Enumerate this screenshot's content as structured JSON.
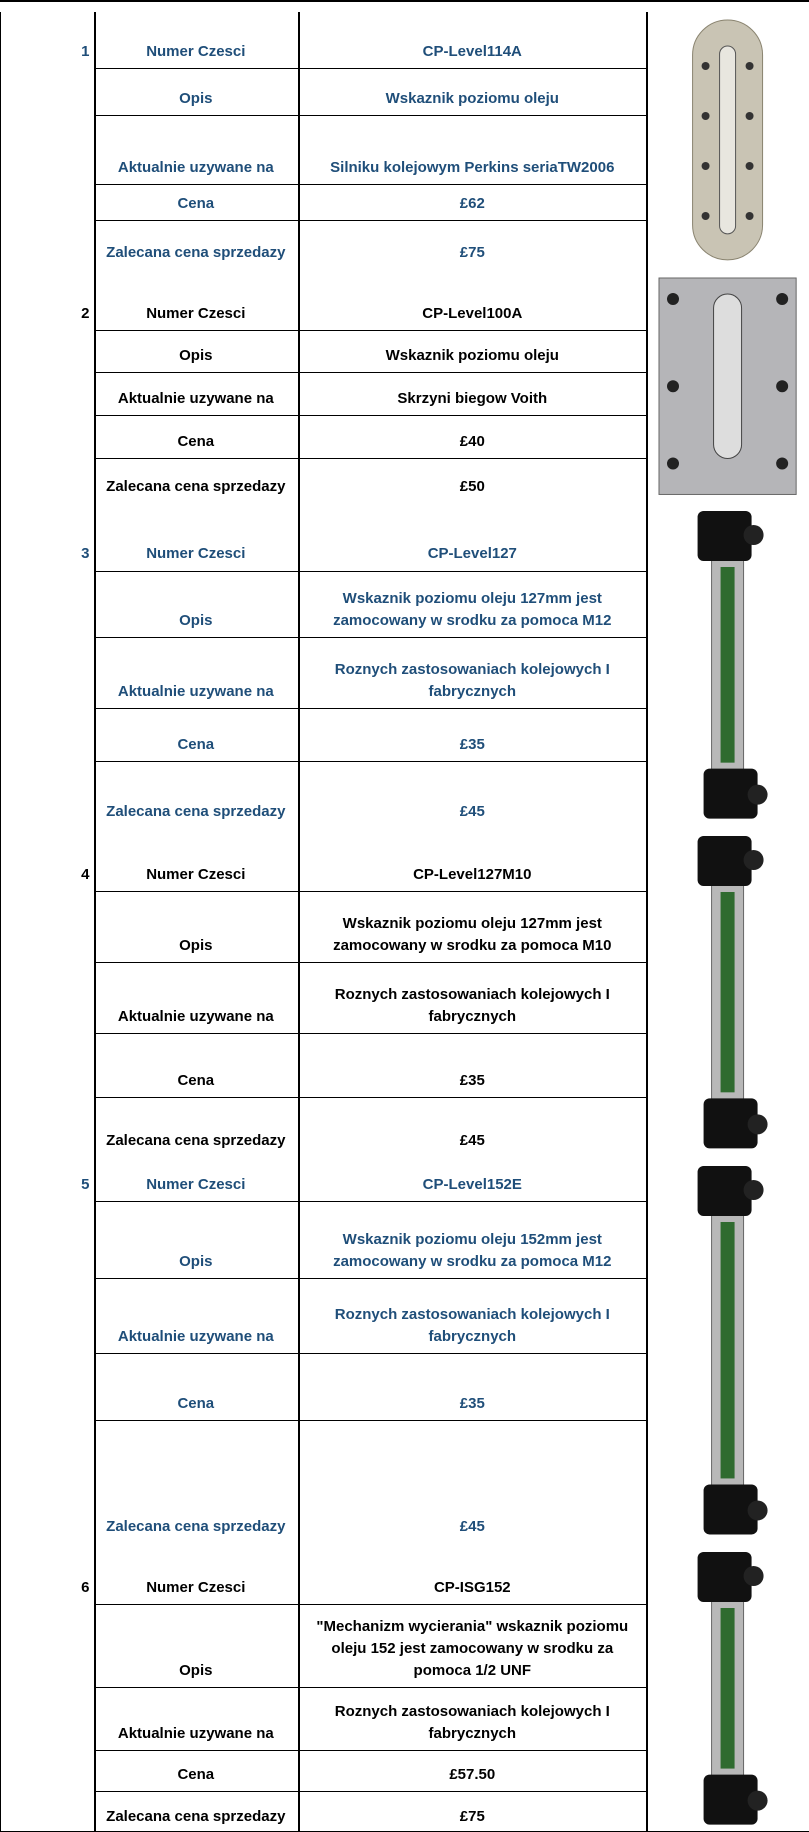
{
  "products": [
    {
      "number": "1",
      "rows": [
        {
          "label": "Numer Czesci",
          "value": "CP-Level114A"
        },
        {
          "label": "Opis",
          "value": "Wskaznik poziomu oleju"
        },
        {
          "label": "Aktualnie uzywane na",
          "value": "Silniku kolejowym Perkins seriaTW2006"
        },
        {
          "label": "Cena",
          "value": "£62"
        },
        {
          "label": "Zalecana cena sprzedazy",
          "value": "£75"
        }
      ]
    },
    {
      "number": "2",
      "rows": [
        {
          "label": "Numer Czesci",
          "value": "CP-Level100A"
        },
        {
          "label": "Opis",
          "value": "Wskaznik poziomu oleju"
        },
        {
          "label": "Aktualnie uzywane na",
          "value": "Skrzyni biegow Voith"
        },
        {
          "label": "Cena",
          "value": "£40"
        },
        {
          "label": "Zalecana cena sprzedazy",
          "value": "£50"
        }
      ]
    },
    {
      "number": "3",
      "rows": [
        {
          "label": "Numer Czesci",
          "value": "CP-Level127"
        },
        {
          "label": "Opis",
          "value": "Wskaznik poziomu oleju 127mm jest zamocowany w srodku za pomoca M12"
        },
        {
          "label": "Aktualnie uzywane na",
          "value": "Roznych zastosowaniach  kolejowych  I fabrycznych"
        },
        {
          "label": "Cena",
          "value": "£35"
        },
        {
          "label": "Zalecana cena sprzedazy",
          "value": "£45"
        }
      ]
    },
    {
      "number": "4",
      "rows": [
        {
          "label": "Numer Czesci",
          "value": "CP-Level127M10"
        },
        {
          "label": "Opis",
          "value": "Wskaznik poziomu oleju 127mm jest zamocowany w srodku za pomoca M10"
        },
        {
          "label": "Aktualnie uzywane na",
          "value": "Roznych zastosowaniach  kolejowych  I fabrycznych"
        },
        {
          "label": "Cena",
          "value": "£35"
        },
        {
          "label": "Zalecana cena sprzedazy",
          "value": "£45"
        }
      ]
    },
    {
      "number": "5",
      "rows": [
        {
          "label": "Numer Czesci",
          "value": "CP-Level152E"
        },
        {
          "label": "Opis",
          "value": "Wskaznik poziomu oleju 152mm jest zamocowany w srodku za pomoca M12"
        },
        {
          "label": "Aktualnie uzywane na",
          "value": "Roznych zastosowaniach  kolejowych  I fabrycznych"
        },
        {
          "label": "Cena",
          "value": "£35"
        },
        {
          "label": "Zalecana cena sprzedazy",
          "value": "£45"
        }
      ]
    },
    {
      "number": "6",
      "rows": [
        {
          "label": "Numer Czesci",
          "value": "CP-ISG152"
        },
        {
          "label": "Opis",
          "value": "\"Mechanizm wycierania\" wskaznik poziomu oleju 152 jest zamocowany w srodku za pomoca 1/2 UNF"
        },
        {
          "label": "Aktualnie uzywane na",
          "value": "Roznych zastosowaniach  kolejowych  I fabrycznych"
        },
        {
          "label": "Cena",
          "value": "£57.50"
        },
        {
          "label": "Zalecana cena sprzedazy",
          "value": "£75"
        }
      ]
    }
  ]
}
